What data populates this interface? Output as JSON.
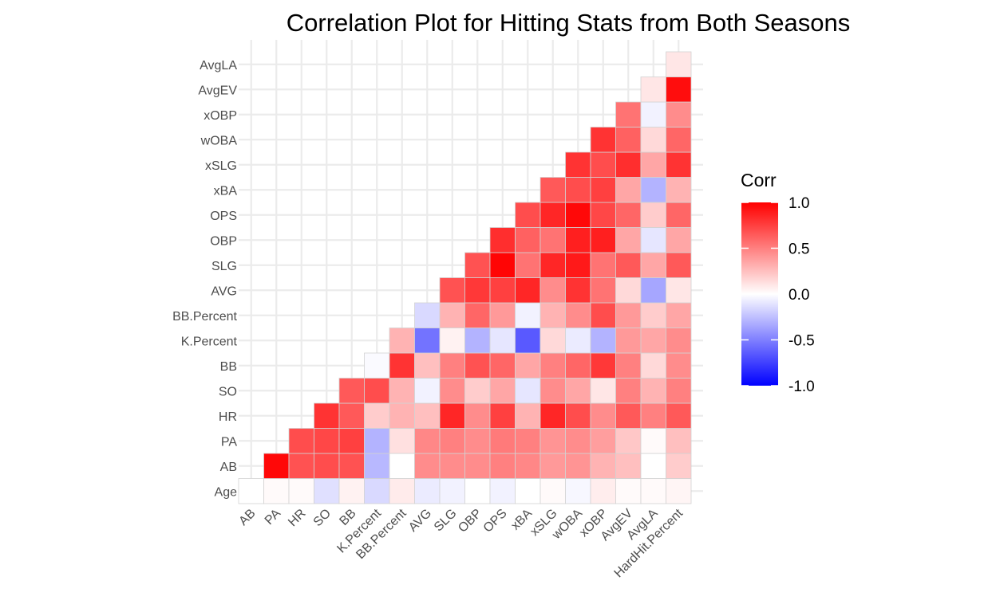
{
  "chart_data": {
    "type": "heatmap",
    "title": "Correlation Plot for Hitting Stats from Both Seasons",
    "xlabel": "",
    "ylabel": "",
    "grid": true,
    "legend_position": "right",
    "x_categories": [
      "AB",
      "PA",
      "HR",
      "SO",
      "BB",
      "K.Percent",
      "BB.Percent",
      "AVG",
      "SLG",
      "OBP",
      "OPS",
      "xBA",
      "xSLG",
      "wOBA",
      "xOBP",
      "AvgEV",
      "AvgLA",
      "HardHit.Percent"
    ],
    "y_categories": [
      "Age",
      "AB",
      "PA",
      "HR",
      "SO",
      "BB",
      "K.Percent",
      "BB.Percent",
      "AVG",
      "SLG",
      "OBP",
      "OPS",
      "xBA",
      "xSLG",
      "wOBA",
      "xOBP",
      "AvgEV",
      "AvgLA"
    ],
    "color_scale": {
      "low": "#0000ff",
      "mid": "#ffffff",
      "high": "#ff0000",
      "limits": [
        -1,
        1
      ]
    },
    "legend": {
      "title": "Corr",
      "ticks": [
        "1.0",
        "0.5",
        "0.0",
        "-0.5",
        "-1.0"
      ]
    },
    "rows": [
      {
        "y": "Age",
        "values": [
          0.0,
          0.02,
          0.02,
          -0.12,
          0.05,
          -0.15,
          0.08,
          -0.08,
          -0.05,
          0.0,
          -0.05,
          0.0,
          0.02,
          -0.03,
          0.07,
          0.02,
          0.02,
          0.04
        ]
      },
      {
        "y": "AB",
        "values": [
          0.97,
          0.68,
          0.7,
          0.68,
          -0.28,
          0.0,
          0.45,
          0.45,
          0.45,
          0.5,
          0.47,
          0.4,
          0.42,
          0.3,
          0.25,
          0.0,
          0.2
        ]
      },
      {
        "y": "PA",
        "values": [
          0.7,
          0.72,
          0.75,
          -0.3,
          0.12,
          0.47,
          0.5,
          0.45,
          0.52,
          0.5,
          0.42,
          0.45,
          0.38,
          0.22,
          0.02,
          0.25
        ]
      },
      {
        "y": "HR",
        "values": [
          0.8,
          0.65,
          0.2,
          0.3,
          0.25,
          0.85,
          0.45,
          0.75,
          0.3,
          0.85,
          0.7,
          0.45,
          0.65,
          0.5,
          0.65
        ]
      },
      {
        "y": "SO",
        "values": [
          0.65,
          0.7,
          0.3,
          -0.05,
          0.45,
          0.2,
          0.35,
          -0.1,
          0.45,
          0.35,
          0.1,
          0.5,
          0.3,
          0.5
        ]
      },
      {
        "y": "BB",
        "values": [
          -0.02,
          0.8,
          0.25,
          0.5,
          0.68,
          0.6,
          0.35,
          0.5,
          0.6,
          0.78,
          0.5,
          0.15,
          0.45
        ]
      },
      {
        "y": "K.Percent",
        "values": [
          0.3,
          -0.55,
          0.05,
          -0.3,
          -0.1,
          -0.65,
          0.15,
          -0.08,
          -0.3,
          0.4,
          0.35,
          0.45
        ]
      },
      {
        "y": "BB.Percent",
        "values": [
          -0.15,
          0.3,
          0.6,
          0.4,
          -0.05,
          0.3,
          0.45,
          0.7,
          0.4,
          0.2,
          0.35
        ]
      },
      {
        "y": "AVG",
        "values": [
          0.68,
          0.78,
          0.75,
          0.85,
          0.45,
          0.8,
          0.55,
          0.15,
          -0.35,
          0.1
        ]
      },
      {
        "y": "SLG",
        "values": [
          0.68,
          0.98,
          0.55,
          0.85,
          0.9,
          0.55,
          0.65,
          0.35,
          0.65
        ]
      },
      {
        "y": "OBP",
        "values": [
          0.82,
          0.62,
          0.55,
          0.88,
          0.88,
          0.35,
          -0.1,
          0.35
        ]
      },
      {
        "y": "OPS",
        "values": [
          0.7,
          0.85,
          0.97,
          0.72,
          0.6,
          0.2,
          0.6
        ]
      },
      {
        "y": "xBA",
        "values": [
          0.65,
          0.7,
          0.75,
          0.35,
          -0.3,
          0.3
        ]
      },
      {
        "y": "xSLG",
        "values": [
          0.8,
          0.7,
          0.82,
          0.35,
          0.8
        ]
      },
      {
        "y": "wOBA",
        "values": [
          0.8,
          0.62,
          0.15,
          0.6
        ]
      },
      {
        "y": "xOBP",
        "values": [
          0.55,
          -0.05,
          0.45
        ]
      },
      {
        "y": "AvgEV",
        "values": [
          0.1,
          0.95
        ]
      },
      {
        "y": "AvgLA",
        "values": [
          0.1
        ]
      }
    ]
  }
}
